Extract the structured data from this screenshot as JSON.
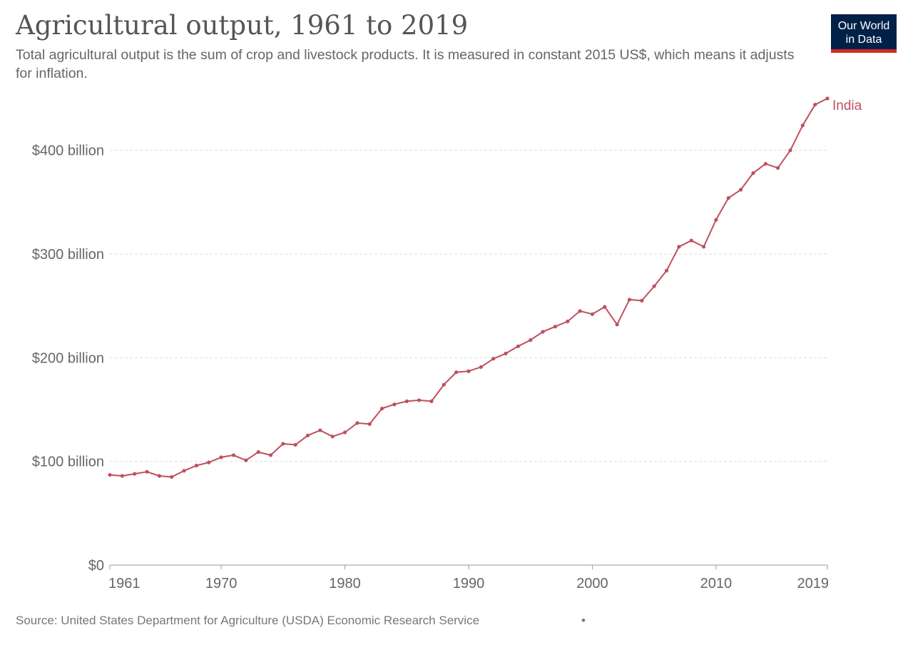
{
  "header": {
    "title": "Agricultural output, 1961 to 2019",
    "subtitle": "Total agricultural output is the sum of crop and livestock products. It is measured in constant 2015 US$, which means it adjusts for inflation."
  },
  "logo": {
    "line1": "Our World",
    "line2": "in Data",
    "bg_color": "#002147",
    "accent_color": "#cc2b2b"
  },
  "footer": {
    "source": "Source: United States Department for Agriculture (USDA) Economic Research Service",
    "dot": "•"
  },
  "chart_data": {
    "type": "line",
    "title": "Agricultural output, 1961 to 2019",
    "xlabel": "",
    "ylabel": "",
    "xlim": [
      1961,
      2019
    ],
    "ylim": [
      0,
      450
    ],
    "x_ticks": [
      1961,
      1970,
      1980,
      1990,
      2000,
      2010,
      2019
    ],
    "y_ticks": [
      {
        "value": 0,
        "label": "$0"
      },
      {
        "value": 100,
        "label": "$100 billion"
      },
      {
        "value": 200,
        "label": "$200 billion"
      },
      {
        "value": 300,
        "label": "$300 billion"
      },
      {
        "value": 400,
        "label": "$400 billion"
      }
    ],
    "grid": "horizontal dashed",
    "series": [
      {
        "name": "India",
        "color": "#be5060",
        "x": [
          1961,
          1962,
          1963,
          1964,
          1965,
          1966,
          1967,
          1968,
          1969,
          1970,
          1971,
          1972,
          1973,
          1974,
          1975,
          1976,
          1977,
          1978,
          1979,
          1980,
          1981,
          1982,
          1983,
          1984,
          1985,
          1986,
          1987,
          1988,
          1989,
          1990,
          1991,
          1992,
          1993,
          1994,
          1995,
          1996,
          1997,
          1998,
          1999,
          2000,
          2001,
          2002,
          2003,
          2004,
          2005,
          2006,
          2007,
          2008,
          2009,
          2010,
          2011,
          2012,
          2013,
          2014,
          2015,
          2016,
          2017,
          2018,
          2019
        ],
        "values": [
          87,
          86,
          88,
          90,
          86,
          85,
          91,
          96,
          99,
          104,
          106,
          101,
          109,
          106,
          117,
          116,
          125,
          130,
          124,
          128,
          137,
          136,
          151,
          155,
          158,
          159,
          158,
          174,
          186,
          187,
          191,
          199,
          204,
          211,
          217,
          225,
          230,
          235,
          245,
          242,
          249,
          232,
          256,
          255,
          269,
          284,
          307,
          313,
          307,
          333,
          354,
          362,
          378,
          387,
          383,
          400,
          424,
          444,
          450
        ]
      }
    ]
  }
}
